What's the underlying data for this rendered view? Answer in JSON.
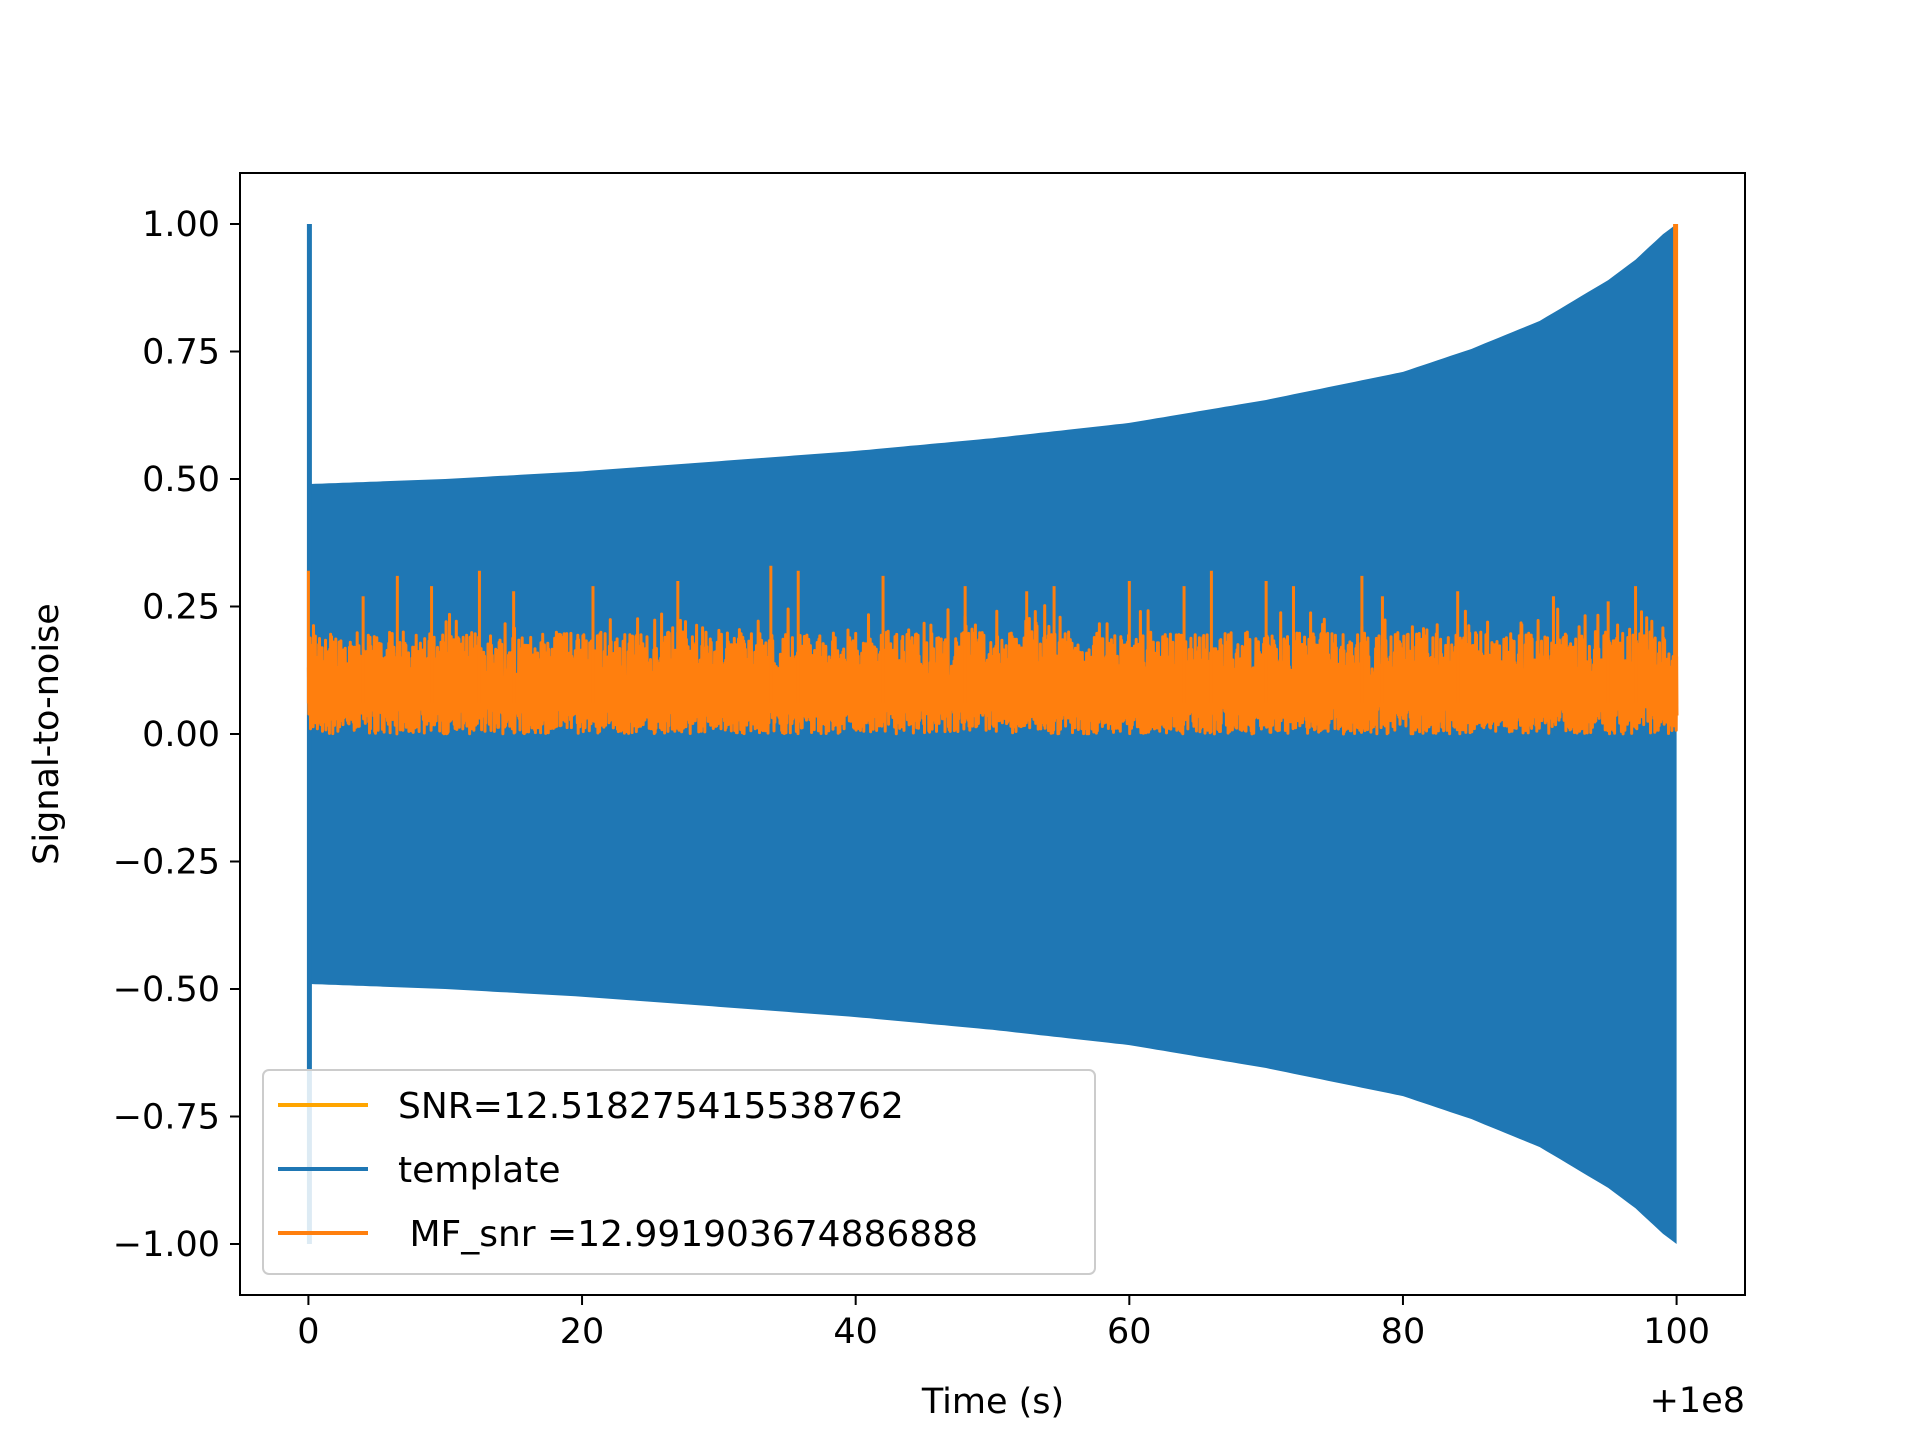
{
  "chart_data": {
    "type": "line",
    "xlabel": "Time (s)",
    "ylabel": "Signal-to-noise",
    "x_offset_label": "+1e8",
    "xlim": [
      -5,
      105
    ],
    "ylim": [
      -1.1,
      1.1
    ],
    "x_ticks": [
      {
        "value": 0,
        "label": "0"
      },
      {
        "value": 20,
        "label": "20"
      },
      {
        "value": 40,
        "label": "40"
      },
      {
        "value": 60,
        "label": "60"
      },
      {
        "value": 80,
        "label": "80"
      },
      {
        "value": 100,
        "label": "100"
      }
    ],
    "y_ticks": [
      {
        "value": 1.0,
        "label": "1.00"
      },
      {
        "value": 0.75,
        "label": "0.75"
      },
      {
        "value": 0.5,
        "label": "0.50"
      },
      {
        "value": 0.25,
        "label": "0.25"
      },
      {
        "value": 0.0,
        "label": "0.00"
      },
      {
        "value": -0.25,
        "label": "−0.25"
      },
      {
        "value": -0.5,
        "label": "−0.50"
      },
      {
        "value": -0.75,
        "label": "−0.75"
      },
      {
        "value": -1.0,
        "label": "−1.00"
      }
    ],
    "grid": false,
    "legend_position": "lower-left",
    "series": [
      {
        "name": "SNR=12.518275415538762",
        "color": "#ffa500",
        "kind": "line",
        "x": [],
        "y": []
      },
      {
        "name": "template",
        "color": "#1f77b4",
        "kind": "oscillating-envelope",
        "x": [
          0.0,
          10,
          20,
          30,
          40,
          50,
          60,
          70,
          80,
          85,
          90,
          95,
          97,
          99,
          100.0
        ],
        "upper": [
          0.49,
          0.5,
          0.515,
          0.535,
          0.555,
          0.58,
          0.61,
          0.655,
          0.71,
          0.755,
          0.81,
          0.89,
          0.93,
          0.98,
          1.0
        ],
        "lower": [
          -0.49,
          -0.5,
          -0.515,
          -0.535,
          -0.555,
          -0.58,
          -0.61,
          -0.655,
          -0.71,
          -0.755,
          -0.81,
          -0.89,
          -0.93,
          -0.98,
          -1.0
        ],
        "spike": {
          "x": 0.0,
          "ymin": -1.0,
          "ymax": 1.0
        }
      },
      {
        "name": " MF_snr =12.991903674886888",
        "color": "#ff7f0e",
        "kind": "noise-band",
        "x_range": [
          0.0,
          100.0
        ],
        "floor": [
          0.0,
          0.06
        ],
        "typical_top": 0.2,
        "peaks": [
          {
            "x": 0.0,
            "y": 0.32
          },
          {
            "x": 4.0,
            "y": 0.27
          },
          {
            "x": 6.5,
            "y": 0.31
          },
          {
            "x": 9.0,
            "y": 0.29
          },
          {
            "x": 12.5,
            "y": 0.32
          },
          {
            "x": 15.0,
            "y": 0.28
          },
          {
            "x": 20.8,
            "y": 0.29
          },
          {
            "x": 27.0,
            "y": 0.3
          },
          {
            "x": 33.8,
            "y": 0.33
          },
          {
            "x": 35.8,
            "y": 0.32
          },
          {
            "x": 42.0,
            "y": 0.31
          },
          {
            "x": 48.0,
            "y": 0.29
          },
          {
            "x": 52.5,
            "y": 0.28
          },
          {
            "x": 54.5,
            "y": 0.29
          },
          {
            "x": 60.0,
            "y": 0.3
          },
          {
            "x": 64.0,
            "y": 0.29
          },
          {
            "x": 66.0,
            "y": 0.32
          },
          {
            "x": 70.0,
            "y": 0.3
          },
          {
            "x": 72.0,
            "y": 0.29
          },
          {
            "x": 77.0,
            "y": 0.31
          },
          {
            "x": 78.5,
            "y": 0.27
          },
          {
            "x": 84.0,
            "y": 0.28
          },
          {
            "x": 91.0,
            "y": 0.27
          },
          {
            "x": 95.0,
            "y": 0.26
          },
          {
            "x": 97.0,
            "y": 0.29
          },
          {
            "x": 100.0,
            "y": 1.0
          }
        ]
      }
    ]
  },
  "colors": {
    "axes": "#000000",
    "background": "#ffffff"
  }
}
